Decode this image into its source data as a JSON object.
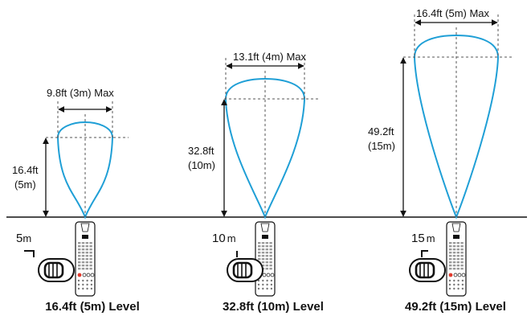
{
  "colors": {
    "beam": "#1f9fd6",
    "line": "#111111",
    "guide": "#555555",
    "red_button": "#e23b2e"
  },
  "panels": [
    {
      "level_caption": "16.4ft (5m) Level",
      "width_label": "9.8ft (3m) Max",
      "height_label_ft": "16.4ft",
      "height_label_m": "(5m)",
      "level_marker": "5",
      "level_marker_unit": "m"
    },
    {
      "level_caption": "32.8ft (10m) Level",
      "width_label": "13.1ft (4m) Max",
      "height_label_ft": "32.8ft",
      "height_label_m": "(10m)",
      "level_marker": "10",
      "level_marker_unit": "m"
    },
    {
      "level_caption": "49.2ft (15m) Level",
      "width_label": "16.4ft (5m) Max",
      "height_label_ft": "49.2ft",
      "height_label_m": "(15m)",
      "level_marker": "15",
      "level_marker_unit": "m"
    }
  ],
  "icons": {
    "remote": "remote-control-icon",
    "receiver": "receiver-unit-icon",
    "level_switch": "level-switch-icon"
  }
}
